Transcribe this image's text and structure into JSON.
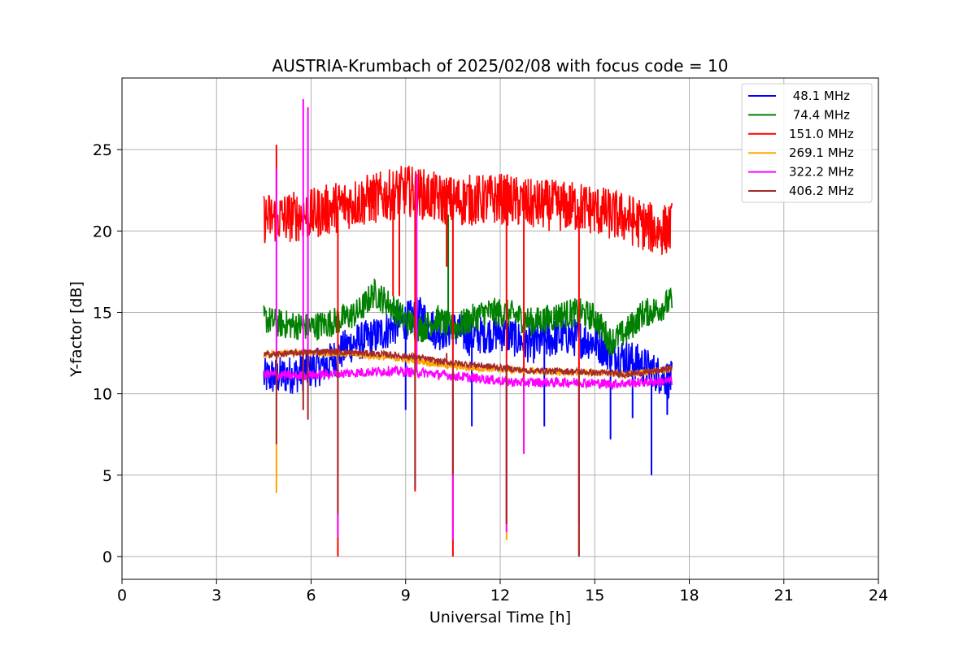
{
  "chart_data": {
    "type": "line",
    "title": "AUSTRIA-Krumbach of 2025/02/08 with focus code = 10",
    "xlabel": "Universal Time [h]",
    "ylabel": "Y-factor [dB]",
    "xlim": [
      0,
      24
    ],
    "ylim": [
      -1.4,
      29.4
    ],
    "xticks": [
      0,
      3,
      6,
      9,
      12,
      15,
      18,
      21,
      24
    ],
    "yticks": [
      0,
      5,
      10,
      15,
      20,
      25
    ],
    "grid": true,
    "legend_position": "top-right",
    "series": [
      {
        "name": " 48.1 MHz",
        "color": "#0000ff",
        "x": [
          4.5,
          5.5,
          6.5,
          7.2,
          8.0,
          8.5,
          9.0,
          9.5,
          10.0,
          10.5,
          11.0,
          12.0,
          13.0,
          14.0,
          15.0,
          15.5,
          16.0,
          16.5,
          17.0,
          17.45
        ],
        "y": [
          11.0,
          11.2,
          11.8,
          13.0,
          13.5,
          14.0,
          14.5,
          14.8,
          13.8,
          14.0,
          13.5,
          13.8,
          13.0,
          13.6,
          13.2,
          12.5,
          12.2,
          11.8,
          11.2,
          10.8
        ],
        "noise": 1.2,
        "spikes": [
          [
            9.0,
            9.0
          ],
          [
            11.1,
            8.0
          ],
          [
            13.4,
            8.0
          ],
          [
            15.5,
            7.2
          ],
          [
            16.2,
            8.5
          ],
          [
            16.8,
            5.0
          ],
          [
            17.3,
            8.7
          ]
        ]
      },
      {
        "name": " 74.4 MHz",
        "color": "#008000",
        "x": [
          4.5,
          5.0,
          5.5,
          6.0,
          6.5,
          7.0,
          7.5,
          8.0,
          8.5,
          9.0,
          9.5,
          10.0,
          10.5,
          11.0,
          11.5,
          12.0,
          12.5,
          13.0,
          13.5,
          14.0,
          14.5,
          15.0,
          15.5,
          16.0,
          16.5,
          17.0,
          17.45
        ],
        "y": [
          14.6,
          14.3,
          14.2,
          14.1,
          14.3,
          14.6,
          15.0,
          16.2,
          15.5,
          14.5,
          14.0,
          14.6,
          14.0,
          14.5,
          15.0,
          15.0,
          14.8,
          14.4,
          14.6,
          14.9,
          15.0,
          14.7,
          13.2,
          13.8,
          14.9,
          15.2,
          15.7
        ],
        "noise": 0.9,
        "spikes": [
          [
            10.35,
            21.0
          ]
        ]
      },
      {
        "name": "151.0 MHz",
        "color": "#ff0000",
        "x": [
          4.5,
          5.0,
          5.5,
          6.0,
          6.5,
          7.0,
          7.5,
          8.0,
          8.5,
          9.0,
          9.5,
          10.0,
          10.5,
          11.0,
          11.5,
          12.0,
          12.5,
          13.0,
          13.5,
          14.0,
          14.5,
          15.0,
          15.5,
          16.0,
          16.5,
          17.0,
          17.45
        ],
        "y": [
          20.8,
          20.8,
          20.9,
          21.0,
          21.3,
          21.6,
          21.8,
          22.0,
          22.2,
          22.5,
          22.3,
          22.0,
          21.8,
          21.9,
          21.9,
          22.0,
          21.8,
          21.6,
          21.6,
          21.5,
          21.5,
          21.3,
          21.0,
          20.8,
          20.4,
          20.0,
          20.2
        ],
        "noise": 1.6,
        "spikes": [
          [
            4.9,
            25.3
          ],
          [
            6.85,
            0.0
          ],
          [
            8.6,
            16.0
          ],
          [
            8.8,
            16.0
          ],
          [
            9.3,
            4.0
          ],
          [
            10.3,
            17.8
          ],
          [
            10.5,
            0.0
          ],
          [
            12.2,
            2.0
          ],
          [
            12.75,
            10.0
          ],
          [
            14.5,
            0.0
          ]
        ]
      },
      {
        "name": "269.1 MHz",
        "color": "#ffa500",
        "x": [
          4.5,
          5.5,
          6.5,
          7.5,
          8.5,
          9.5,
          10.0,
          10.5,
          11.0,
          12.0,
          13.0,
          14.0,
          15.0,
          16.0,
          17.0,
          17.45
        ],
        "y": [
          12.4,
          12.5,
          12.5,
          12.4,
          12.2,
          12.0,
          11.8,
          11.7,
          11.6,
          11.5,
          11.4,
          11.3,
          11.3,
          11.2,
          11.4,
          11.5
        ],
        "noise": 0.2,
        "spikes": [
          [
            4.9,
            3.9
          ],
          [
            6.85,
            1.2
          ],
          [
            9.3,
            7.6
          ],
          [
            10.5,
            1.0
          ],
          [
            12.2,
            1.0
          ],
          [
            14.5,
            0.0
          ]
        ]
      },
      {
        "name": "322.2 MHz",
        "color": "#ff00ff",
        "x": [
          4.5,
          5.5,
          6.5,
          7.5,
          8.5,
          9.5,
          10.5,
          11.5,
          12.5,
          13.5,
          14.5,
          15.5,
          16.5,
          17.45
        ],
        "y": [
          11.2,
          11.1,
          11.2,
          11.3,
          11.4,
          11.3,
          11.1,
          10.9,
          10.7,
          10.7,
          10.7,
          10.6,
          10.7,
          10.8
        ],
        "noise": 0.3,
        "spikes": [
          [
            4.9,
            23.8
          ],
          [
            5.75,
            28.1
          ],
          [
            5.9,
            27.6
          ],
          [
            6.85,
            1.2
          ],
          [
            9.35,
            23.5
          ],
          [
            10.5,
            1.0
          ],
          [
            12.2,
            1.5
          ],
          [
            12.75,
            6.3
          ],
          [
            14.5,
            2.0
          ]
        ]
      },
      {
        "name": "406.2 MHz",
        "color": "#a52a2a",
        "x": [
          4.5,
          5.5,
          6.5,
          7.5,
          8.5,
          9.5,
          10.0,
          10.5,
          11.0,
          12.0,
          13.0,
          14.0,
          15.0,
          16.0,
          17.0,
          17.45
        ],
        "y": [
          12.4,
          12.5,
          12.6,
          12.5,
          12.4,
          12.2,
          12.0,
          11.9,
          11.8,
          11.6,
          11.4,
          11.4,
          11.3,
          11.2,
          11.4,
          11.6
        ],
        "noise": 0.2,
        "spikes": [
          [
            4.9,
            6.9
          ],
          [
            5.75,
            9.0
          ],
          [
            5.9,
            8.4
          ],
          [
            6.85,
            2.6
          ],
          [
            9.3,
            4.2
          ],
          [
            10.3,
            12.5
          ],
          [
            10.5,
            5.0
          ],
          [
            12.2,
            2.0
          ],
          [
            14.5,
            0.0
          ]
        ]
      }
    ]
  }
}
